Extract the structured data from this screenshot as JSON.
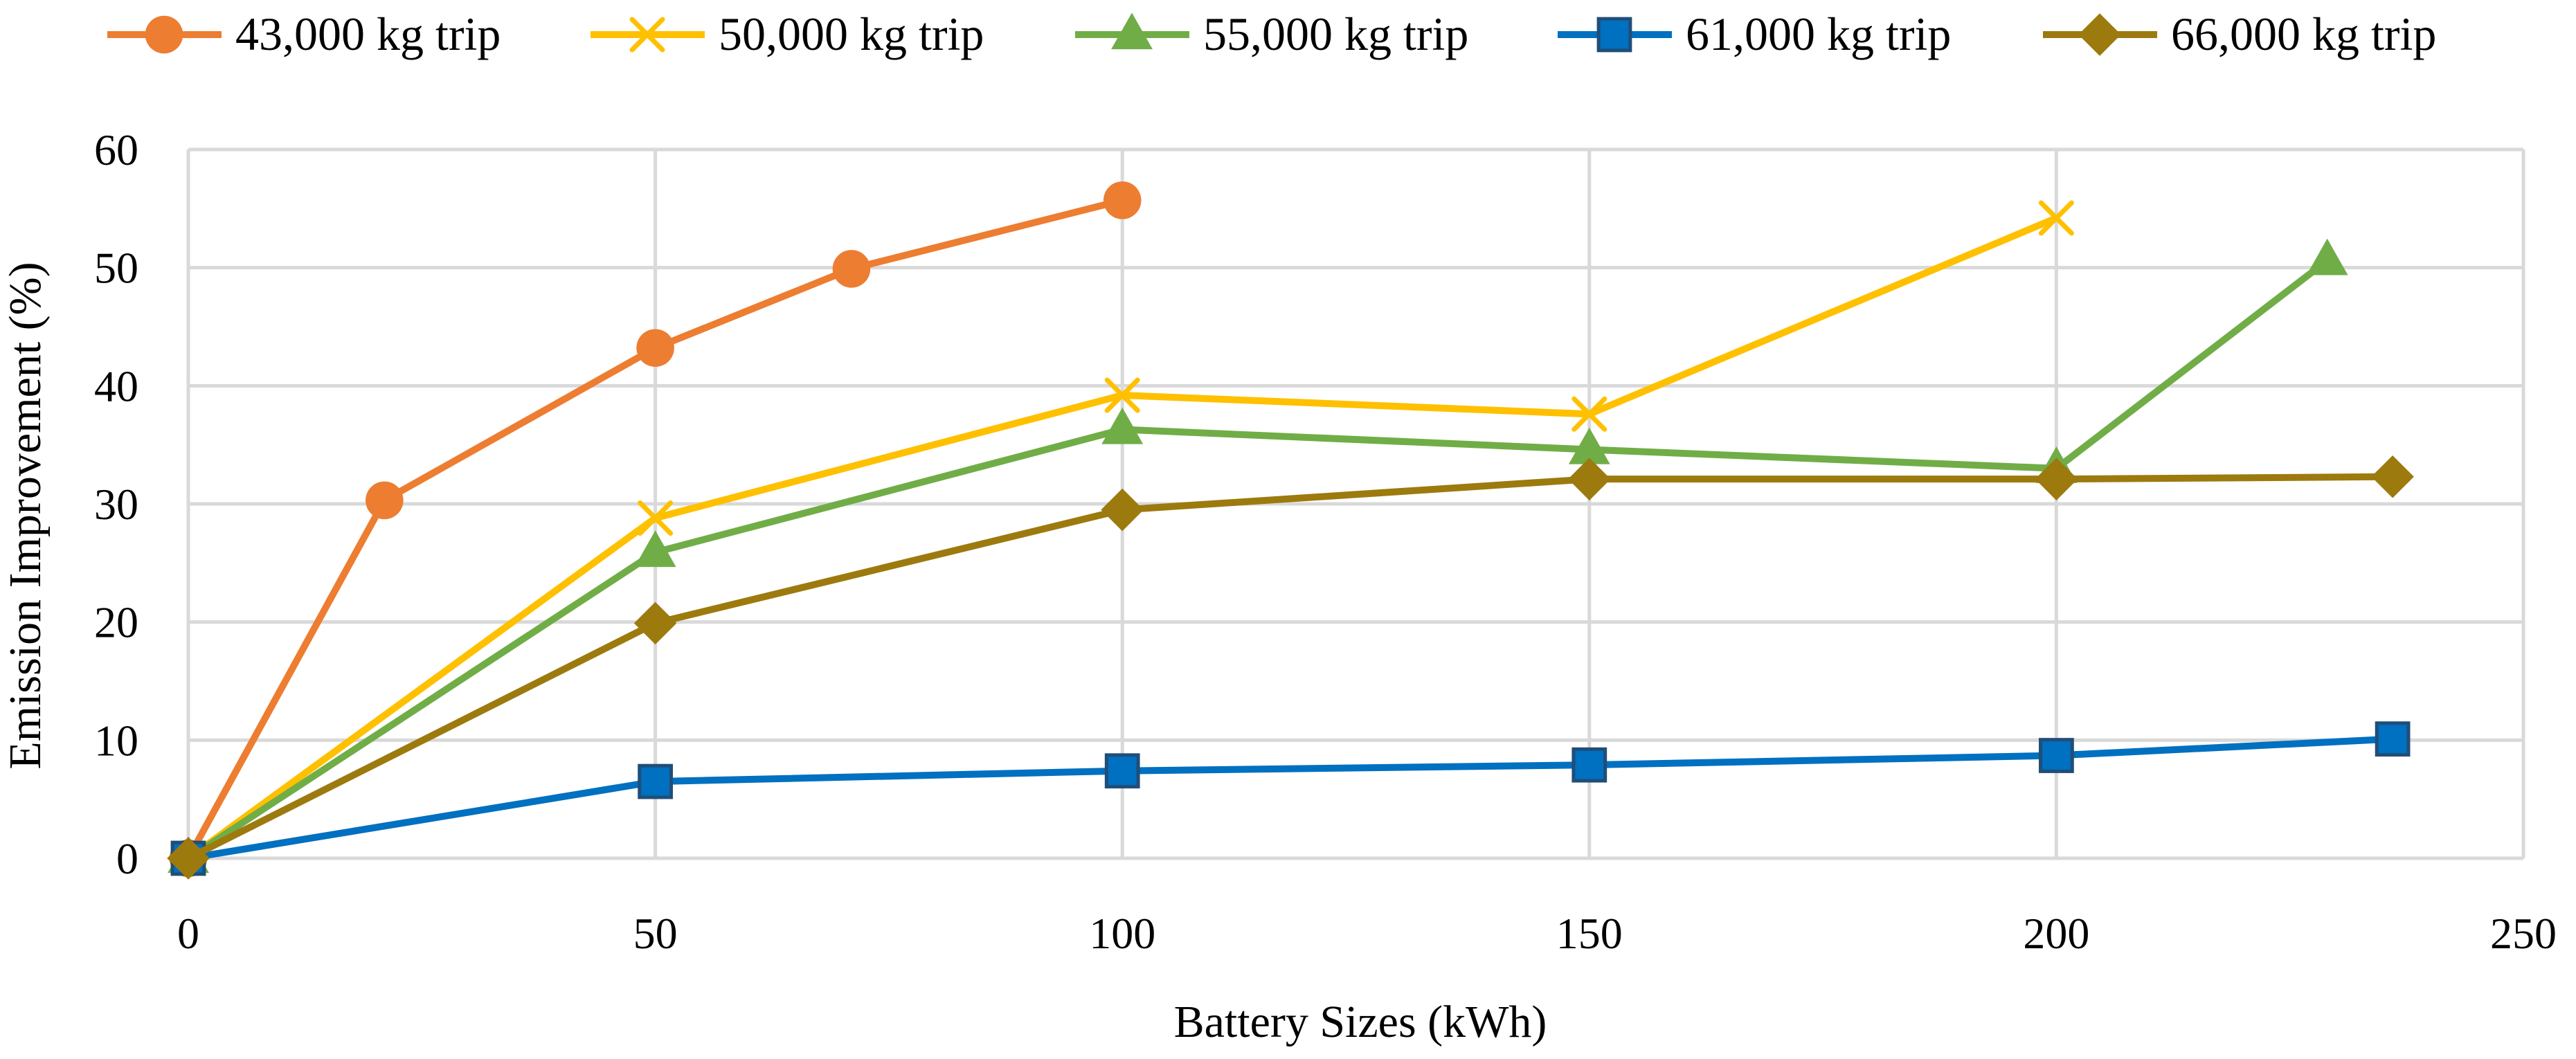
{
  "chart_data": {
    "type": "line",
    "title": "",
    "xlabel": "Battery Sizes (kWh)",
    "ylabel": "Emission Improvement (%)",
    "xlim": [
      0,
      250
    ],
    "ylim": [
      0,
      60
    ],
    "xticks": [
      0,
      50,
      100,
      150,
      200,
      250
    ],
    "yticks": [
      0,
      10,
      20,
      30,
      40,
      50,
      60
    ],
    "grid": true,
    "legend_position": "top",
    "series": [
      {
        "name": "43,000 kg trip",
        "color": "#ED7D31",
        "marker": "circle",
        "x": [
          0,
          21,
          50,
          71,
          100
        ],
        "y": [
          0,
          30.3,
          43.2,
          49.9,
          55.7
        ]
      },
      {
        "name": "50,000 kg trip",
        "color": "#FFC000",
        "marker": "x",
        "x": [
          0,
          50,
          100,
          150,
          200
        ],
        "y": [
          0,
          28.8,
          39.2,
          37.6,
          54.2
        ]
      },
      {
        "name": "55,000 kg trip",
        "color": "#70AD47",
        "marker": "triangle",
        "x": [
          0,
          50,
          100,
          150,
          200,
          229
        ],
        "y": [
          0,
          25.9,
          36.3,
          34.6,
          33.0,
          50.6
        ]
      },
      {
        "name": "61,000 kg trip",
        "color": "#0070C0",
        "marker": "square",
        "x": [
          0,
          50,
          100,
          150,
          200,
          236
        ],
        "y": [
          0,
          6.5,
          7.4,
          7.9,
          8.7,
          10.1
        ]
      },
      {
        "name": "66,000 kg trip",
        "color": "#9C7A0E",
        "marker": "diamond",
        "x": [
          0,
          50,
          100,
          150,
          200,
          236
        ],
        "y": [
          0,
          19.9,
          29.5,
          32.1,
          32.1,
          32.3
        ]
      }
    ]
  }
}
